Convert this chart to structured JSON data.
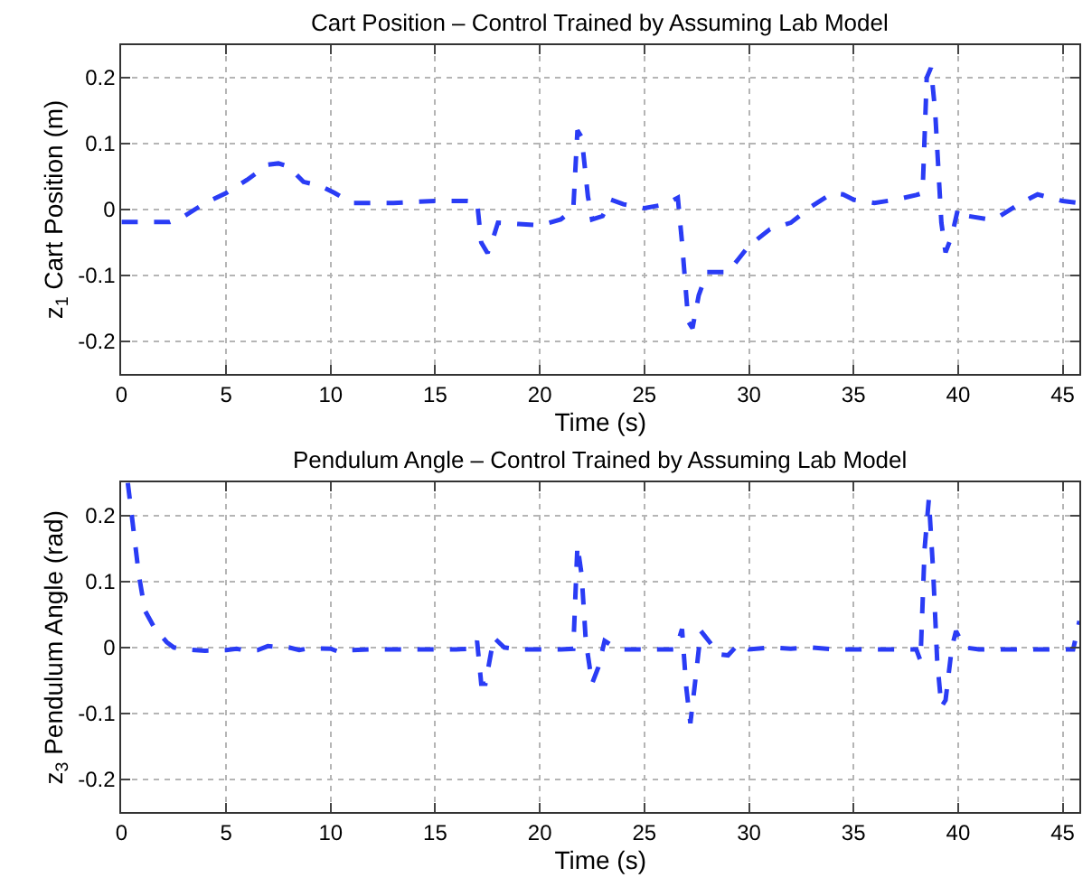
{
  "chart_data": [
    {
      "type": "line",
      "title": "Cart Position – Control Trained by Assuming Lab Model",
      "xlabel": "Time (s)",
      "ylabel": "z$_{1}$ Cart Position (m)",
      "xlim": [
        0,
        45.8
      ],
      "xticks": [
        0,
        5,
        10,
        15,
        20,
        25,
        30,
        35,
        40,
        45
      ],
      "ylim": [
        -0.25,
        0.25
      ],
      "yticks": [
        -0.2,
        -0.1,
        0,
        0.1,
        0.2
      ],
      "grid": true,
      "line_style": "dashed",
      "marker": "none",
      "series": [
        {
          "color": "#2a3cf5",
          "x": [
            0,
            2.3,
            3,
            4,
            5,
            6,
            7,
            7.5,
            8,
            8.7,
            9.5,
            10.2,
            11,
            12,
            13,
            15,
            16.5,
            17,
            17.2,
            17.5,
            17.8,
            18,
            19,
            20,
            21,
            21.6,
            21.8,
            22,
            22.3,
            22.5,
            23,
            23.4,
            24,
            25,
            26,
            26.6,
            26.8,
            27.1,
            27.3,
            27.6,
            28,
            28.5,
            29,
            29.5,
            30,
            31,
            32,
            33,
            34,
            34.5,
            35,
            36,
            37,
            38,
            38.3,
            38.5,
            38.7,
            38.9,
            39.2,
            39.4,
            39.7,
            40,
            40.5,
            41.5,
            42,
            43,
            43.8,
            45,
            45.8
          ],
          "values": [
            -0.019,
            -0.019,
            -0.01,
            0.01,
            0.025,
            0.045,
            0.068,
            0.07,
            0.065,
            0.042,
            0.036,
            0.025,
            0.01,
            0.01,
            0.01,
            0.013,
            0.013,
            0.012,
            -0.05,
            -0.066,
            -0.04,
            -0.02,
            -0.022,
            -0.024,
            -0.015,
            0.0,
            0.12,
            0.11,
            0.02,
            -0.015,
            -0.01,
            0.015,
            0.008,
            0.002,
            0.008,
            0.018,
            -0.05,
            -0.17,
            -0.18,
            -0.13,
            -0.095,
            -0.095,
            -0.095,
            -0.075,
            -0.055,
            -0.03,
            -0.02,
            0.005,
            0.025,
            0.023,
            0.015,
            0.01,
            0.015,
            0.022,
            0.025,
            0.2,
            0.215,
            0.15,
            -0.02,
            -0.065,
            -0.04,
            0.002,
            -0.01,
            -0.015,
            -0.01,
            0.01,
            0.023,
            0.013,
            0.01
          ]
        }
      ]
    },
    {
      "type": "line",
      "title": "Pendulum Angle – Control Trained by Assuming Lab Model",
      "xlabel": "Time (s)",
      "ylabel": "z$_{3}$ Pendulum Angle (rad)",
      "xlim": [
        0,
        45.8
      ],
      "xticks": [
        0,
        5,
        10,
        15,
        20,
        25,
        30,
        35,
        40,
        45
      ],
      "ylim": [
        -0.25,
        0.25
      ],
      "yticks": [
        -0.2,
        -0.1,
        0,
        0.1,
        0.2
      ],
      "grid": true,
      "line_style": "dashed",
      "marker": "none",
      "series": [
        {
          "color": "#2a3cf5",
          "x": [
            0.3,
            0.53,
            0.83,
            1.12,
            1.57,
            2.16,
            2.5,
            3,
            4,
            5,
            5.5,
            6,
            6.5,
            7,
            8,
            8.5,
            9,
            10,
            10.5,
            11,
            12,
            14,
            16,
            16.9,
            17,
            17.2,
            17.4,
            17.8,
            18.3,
            19,
            21,
            21.6,
            21.8,
            22,
            22.2,
            22.5,
            22.8,
            23.1,
            23.6,
            24,
            26.5,
            26.8,
            27,
            27.2,
            27.4,
            27.7,
            28.2,
            28.5,
            29,
            29.5,
            30,
            31,
            32,
            33,
            34,
            36,
            38,
            38.2,
            38.4,
            38.6,
            38.8,
            39,
            39.2,
            39.4,
            39.7,
            39.9,
            40.3,
            41,
            45.5,
            45.8
          ],
          "values": [
            0.25,
            0.19,
            0.11,
            0.056,
            0.03,
            0.008,
            0.0,
            -0.003,
            -0.005,
            -0.004,
            -0.002,
            -0.005,
            -0.004,
            0.002,
            0.0,
            -0.004,
            -0.001,
            -0.002,
            -0.008,
            -0.004,
            -0.003,
            -0.003,
            -0.003,
            -0.002,
            0.01,
            -0.055,
            -0.055,
            0.015,
            0.0,
            -0.003,
            -0.003,
            -0.002,
            0.155,
            0.11,
            0.01,
            -0.055,
            -0.03,
            0.01,
            0.0,
            -0.003,
            -0.003,
            0.028,
            -0.06,
            -0.115,
            -0.06,
            0.025,
            0.005,
            -0.01,
            -0.012,
            0.005,
            -0.003,
            0.0,
            -0.002,
            0.0,
            -0.003,
            -0.003,
            -0.003,
            -0.02,
            0.15,
            0.225,
            0.12,
            -0.02,
            -0.09,
            -0.08,
            0.0,
            0.025,
            0.0,
            -0.003,
            -0.003,
            0.04
          ]
        }
      ]
    }
  ]
}
